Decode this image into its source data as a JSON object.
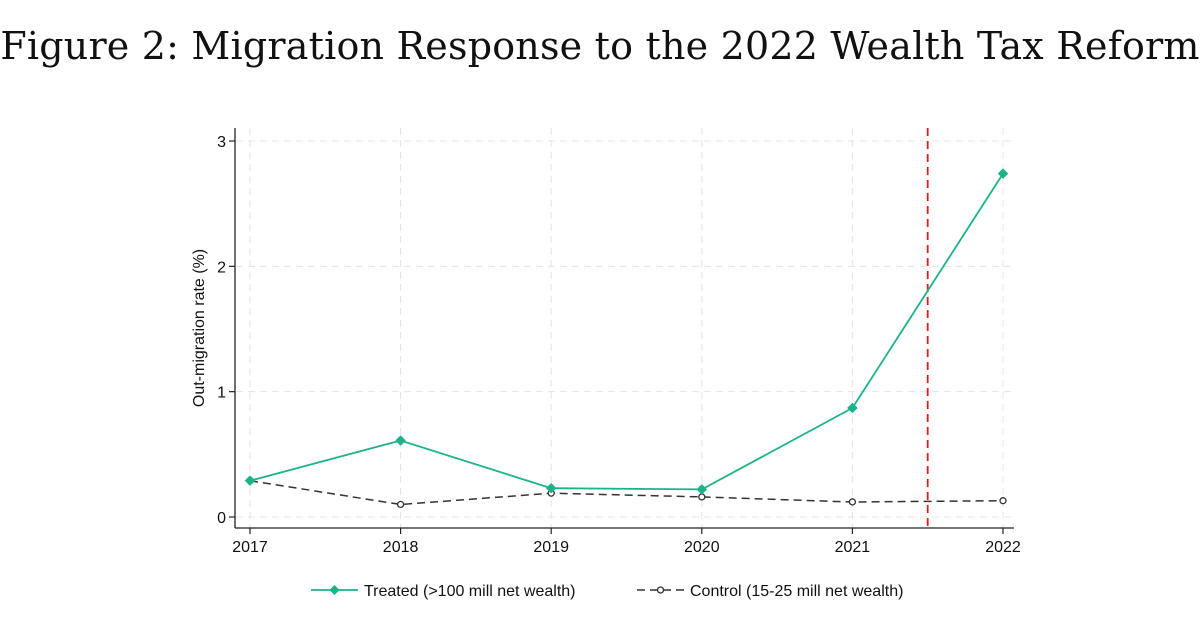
{
  "figure": {
    "title": "Figure 2: Migration Response to the 2022 Wealth Tax Reform"
  },
  "chart_data": {
    "type": "line",
    "title": "Figure 2: Migration Response to the 2022 Wealth Tax Reform",
    "xlabel": "",
    "ylabel": "Out-migration rate (%)",
    "x": [
      2017,
      2018,
      2019,
      2020,
      2021,
      2022
    ],
    "x_tick_labels": [
      "2017",
      "2018",
      "2019",
      "2020",
      "2021",
      "2022"
    ],
    "ylim": [
      0,
      3
    ],
    "y_ticks": [
      0,
      1,
      2,
      3
    ],
    "y_tick_labels": [
      "0",
      "1",
      "2",
      "3"
    ],
    "grid": true,
    "reference_line": {
      "x": 2021.5,
      "color": "#e41a1c",
      "style": "dashed"
    },
    "series": [
      {
        "name": "Treated (>100 mill net wealth)",
        "values": [
          0.29,
          0.61,
          0.23,
          0.22,
          0.87,
          2.74
        ],
        "color": "#1ab38a",
        "line_style": "solid",
        "marker": "diamond"
      },
      {
        "name": "Control (15-25 mill net wealth)",
        "values": [
          0.29,
          0.1,
          0.19,
          0.16,
          0.12,
          0.13
        ],
        "color": "#333333",
        "line_style": "dashed",
        "marker": "open-circle"
      }
    ],
    "legend": {
      "placement": "bottom-center",
      "entries": [
        "Treated (>100 mill net wealth)",
        "Control (15-25 mill net wealth)"
      ]
    }
  }
}
